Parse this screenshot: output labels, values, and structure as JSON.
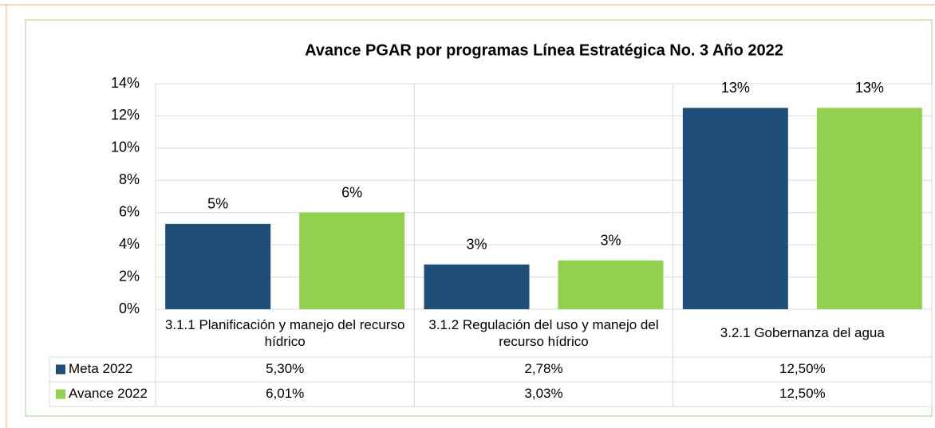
{
  "chart_data": {
    "type": "bar",
    "title": "Avance PGAR por programas Línea Estratégica No. 3 Año 2022",
    "categories": [
      "3.1.1 Planificación y manejo del recurso hídrico",
      "3.1.2 Regulación del uso y manejo del recurso hídrico",
      "3.2.1 Gobernanza del agua"
    ],
    "series": [
      {
        "name": "Meta 2022",
        "color": "#1f4e79",
        "values": [
          5.3,
          2.78,
          12.5
        ],
        "value_labels": [
          "5%",
          "3%",
          "13%"
        ],
        "table_labels": [
          "5,30%",
          "2,78%",
          "12,50%"
        ]
      },
      {
        "name": "Avance 2022",
        "color": "#92d050",
        "values": [
          6.01,
          3.03,
          12.5
        ],
        "value_labels": [
          "6%",
          "3%",
          "13%"
        ],
        "table_labels": [
          "6,01%",
          "3,03%",
          "12,50%"
        ]
      }
    ],
    "ylim": [
      0,
      14
    ],
    "yticks": [
      {
        "value": 0,
        "label": "0%"
      },
      {
        "value": 2,
        "label": "2%"
      },
      {
        "value": 4,
        "label": "4%"
      },
      {
        "value": 6,
        "label": "6%"
      },
      {
        "value": 8,
        "label": "8%"
      },
      {
        "value": 10,
        "label": "10%"
      },
      {
        "value": 12,
        "label": "12%"
      },
      {
        "value": 14,
        "label": "14%"
      }
    ],
    "grid": true
  }
}
